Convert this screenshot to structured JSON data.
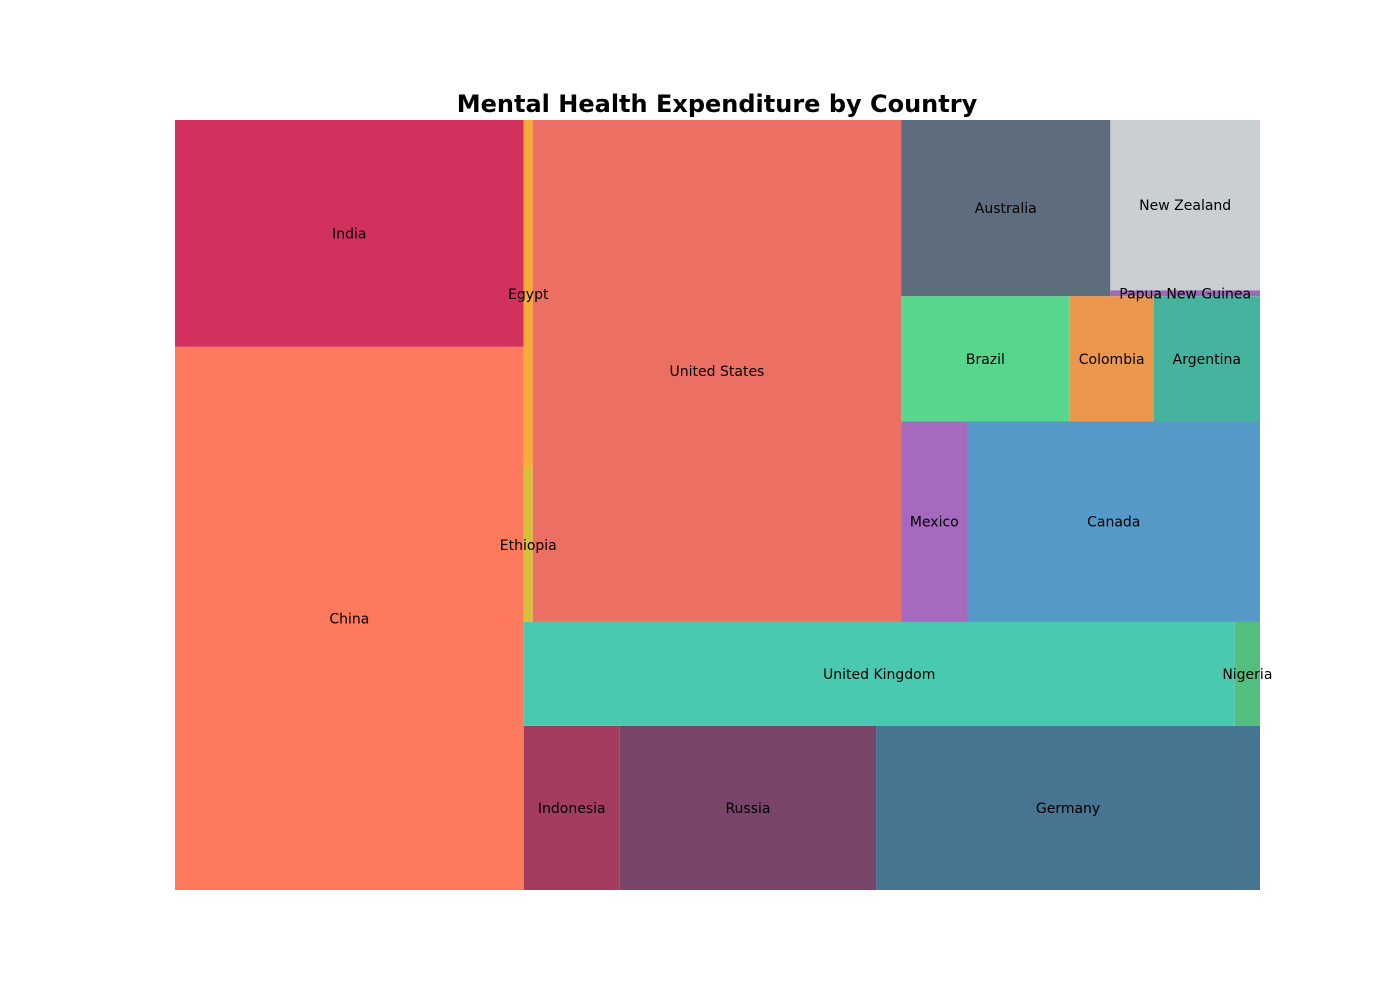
{
  "chart_data": {
    "type": "treemap",
    "title": "Mental Health Expenditure by Country",
    "items": [
      {
        "name": "China",
        "value": 209.0,
        "color": "#ff7a5c"
      },
      {
        "name": "India",
        "value": 87.3,
        "color": "#d3315d"
      },
      {
        "name": "Egypt",
        "value": 3.5,
        "color": "#f6ab3a"
      },
      {
        "name": "Ethiopia",
        "value": 1.55,
        "color": "#d6bf3a"
      },
      {
        "name": "United States",
        "value": 204.0,
        "color": "#eb6f62"
      },
      {
        "name": "United Kingdom",
        "value": 81.6,
        "color": "#48c9b0"
      },
      {
        "name": "Nigeria",
        "value": 2.9,
        "color": "#52be80"
      },
      {
        "name": "Indonesia",
        "value": 17.4,
        "color": "#a33c5f"
      },
      {
        "name": "Russia",
        "value": 46.4,
        "color": "#784568"
      },
      {
        "name": "Germany",
        "value": 69.5,
        "color": "#477491"
      },
      {
        "name": "Australia",
        "value": 40.7,
        "color": "#5d6d7e"
      },
      {
        "name": "New Zealand",
        "value": 29.1,
        "color": "#cacfd2"
      },
      {
        "name": "Papua New Guinea",
        "value": 1.0,
        "color": "#a06ab4"
      },
      {
        "name": "Brazil",
        "value": 23.3,
        "color": "#58d68d"
      },
      {
        "name": "Colombia",
        "value": 11.6,
        "color": "#eb984e"
      },
      {
        "name": "Argentina",
        "value": 14.7,
        "color": "#45b39d"
      },
      {
        "name": "Mexico",
        "value": 14.5,
        "color": "#a569bd"
      },
      {
        "name": "Canada",
        "value": 63.9,
        "color": "#5499c7"
      }
    ]
  }
}
